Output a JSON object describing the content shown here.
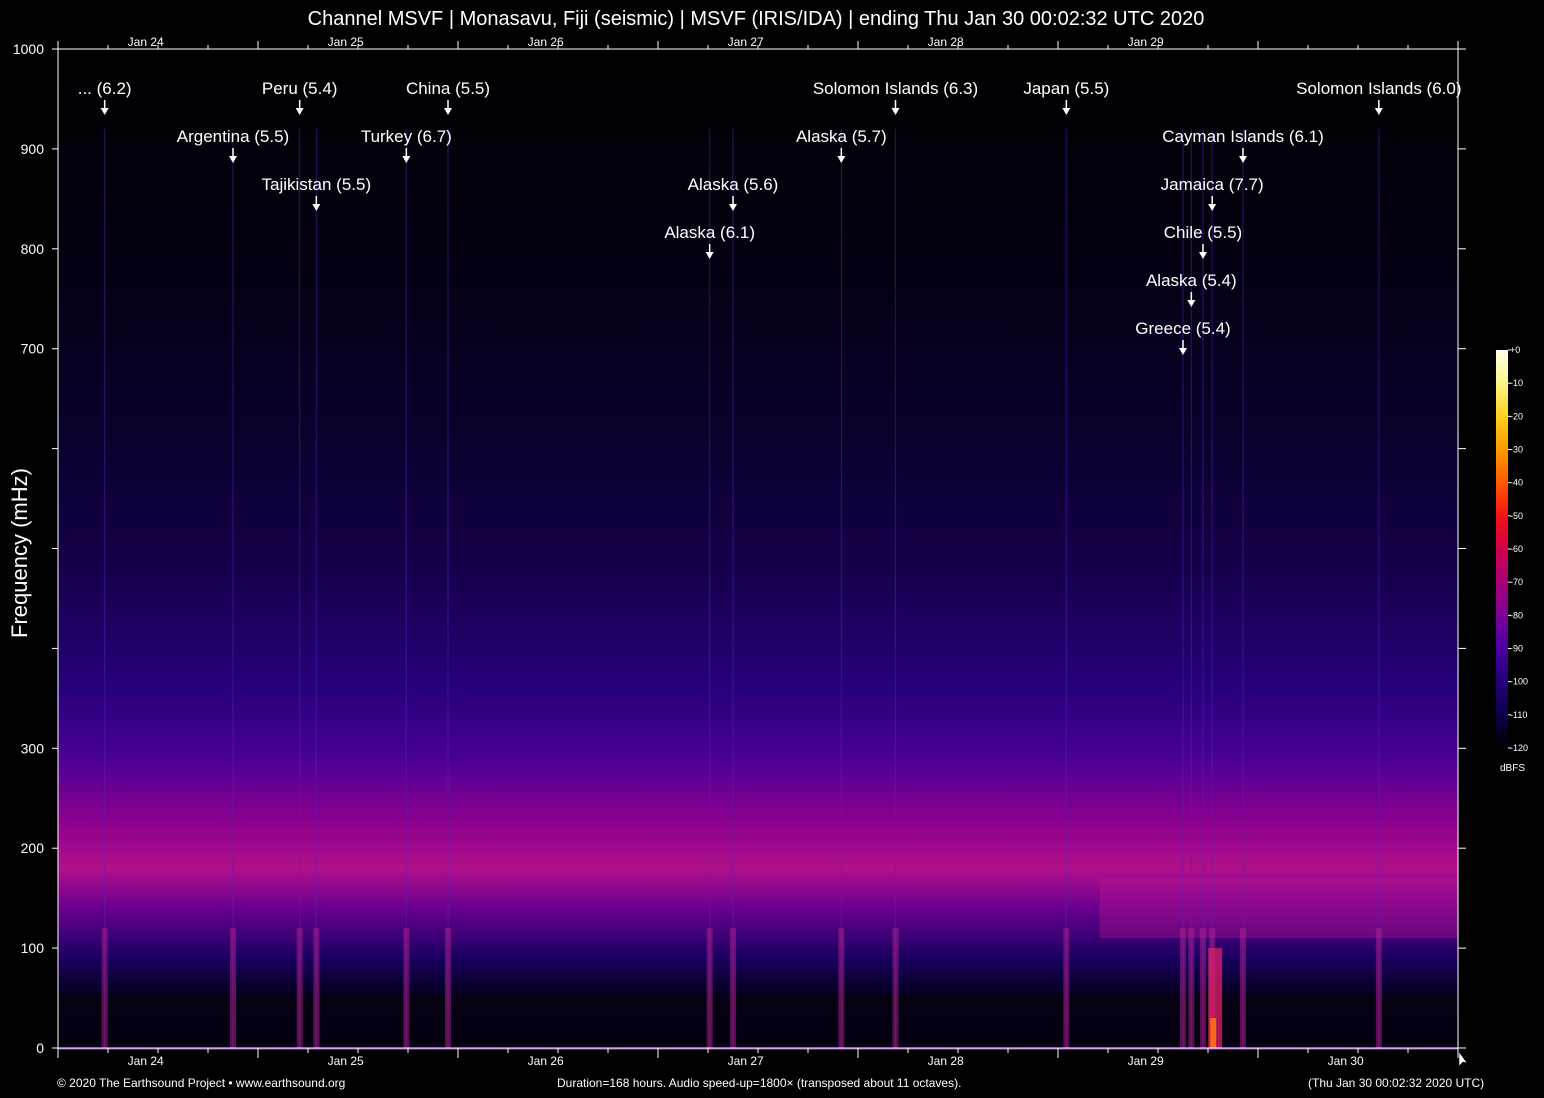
{
  "chart_data": {
    "type": "heatmap",
    "title": "Channel MSVF | Monasavu, Fiji (seismic) | MSVF (IRIS/IDA) | ending Thu Jan 30 00:02:32 UTC 2020",
    "ylabel": "Frequency (mHz)",
    "xlabel": "",
    "ylim": [
      0,
      1000
    ],
    "y_ticks": [
      "0",
      "100",
      "200",
      "300",
      "",
      "",
      "",
      "700",
      "800",
      "900",
      "1000"
    ],
    "x_ticks_bottom": [
      "Jan 24",
      "Jan 25",
      "Jan 26",
      "Jan 27",
      "Jan 28",
      "Jan 29",
      "Jan 30"
    ],
    "x_ticks_top": [
      "Jan 24",
      "Jan 25",
      "Jan 26",
      "Jan 27",
      "Jan 28",
      "Jan 29"
    ],
    "x_range_hours": [
      0,
      168
    ],
    "colorbar": {
      "unit": "dBFS",
      "ticks": [
        "+0",
        "-10",
        "-20",
        "-30",
        "-40",
        "-50",
        "-60",
        "-70",
        "-80",
        "-90",
        "-100",
        "-110",
        "-120"
      ],
      "colors": [
        "#ffffe8",
        "#fff58a",
        "#ffd21e",
        "#ff9a00",
        "#ff5a00",
        "#f01414",
        "#d0004a",
        "#a8007a",
        "#7a0096",
        "#4a00a0",
        "#22007a",
        "#0c004a",
        "#000000"
      ]
    },
    "events": [
      {
        "label": "... (6.2)",
        "hour": 5.6,
        "row": 0
      },
      {
        "label": "Argentina (5.5)",
        "hour": 21.0,
        "row": 1
      },
      {
        "label": "Tajikistan (5.5)",
        "hour": 31.0,
        "row": 2
      },
      {
        "label": "Peru (5.4)",
        "hour": 29.0,
        "row": 0
      },
      {
        "label": "Turkey (6.7)",
        "hour": 41.8,
        "row": 1
      },
      {
        "label": "China (5.5)",
        "hour": 46.8,
        "row": 0
      },
      {
        "label": "Alaska (6.1)",
        "hour": 78.2,
        "row": 3
      },
      {
        "label": "Alaska (5.6)",
        "hour": 81.0,
        "row": 2
      },
      {
        "label": "Alaska (5.7)",
        "hour": 94.0,
        "row": 1
      },
      {
        "label": "Solomon Islands (6.3)",
        "hour": 100.5,
        "row": 0
      },
      {
        "label": "Japan (5.5)",
        "hour": 121.0,
        "row": 0
      },
      {
        "label": "Cayman Islands (6.1)",
        "hour": 142.2,
        "row": 1
      },
      {
        "label": "Jamaica (7.7)",
        "hour": 138.5,
        "row": 2
      },
      {
        "label": "Chile (5.5)",
        "hour": 137.4,
        "row": 3
      },
      {
        "label": "Alaska (5.4)",
        "hour": 136.0,
        "row": 4
      },
      {
        "label": "Greece (5.4)",
        "hour": 135.0,
        "row": 5
      },
      {
        "label": "Solomon Islands (6.0)",
        "hour": 158.5,
        "row": 0
      }
    ]
  },
  "footer": {
    "left": "© 2020 The Earthsound Project • www.earthsound.org",
    "center": "Duration=168 hours. Audio speed-up=1800× (transposed about 11 octaves).",
    "right": "(Thu Jan 30 00:02:32 2020 UTC)"
  }
}
